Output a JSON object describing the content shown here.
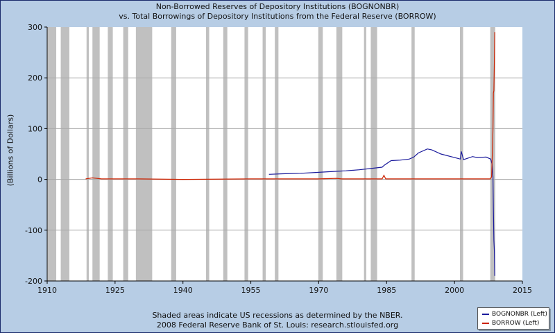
{
  "title": {
    "line1": "Non-Borrowed Reserves of Depository Institutions (BOGNONBR)",
    "line2": "vs.  Total Borrowings of Depository Institutions from the Federal Reserve (BORROW)"
  },
  "footer": {
    "line1": "Shaded areas indicate US recessions as determined by the NBER.",
    "line2": "2008 Federal Reserve Bank of St. Louis: research.stlouisfed.org"
  },
  "legend": [
    {
      "label": "BOGNONBR (Left)",
      "color": "#1a1a9c"
    },
    {
      "label": "BORROW (Left)",
      "color": "#cc2200"
    }
  ],
  "colors": {
    "background": "#b7cde5",
    "plot": "#ffffff",
    "recession": "#c0c0c0",
    "grid": "#aaaaaa"
  },
  "chart_data": {
    "type": "line",
    "title": "Non-Borrowed Reserves of Depository Institutions (BOGNONBR) vs. Total Borrowings of Depository Institutions from the Federal Reserve (BORROW)",
    "xlabel": "",
    "ylabel": "(Billions of Dollars)",
    "xlim": [
      1910,
      2015
    ],
    "ylim": [
      -200,
      300
    ],
    "x_ticks": [
      "1910",
      "1925",
      "1940",
      "1955",
      "1970",
      "1985",
      "2000",
      "2015"
    ],
    "y_ticks": [
      "-200",
      "-100",
      "0",
      "100",
      "200",
      "300"
    ],
    "grid": true,
    "legend_position": "bottom-right",
    "recessions": [
      [
        1910.1,
        1912.0
      ],
      [
        1913.0,
        1914.9
      ],
      [
        1918.7,
        1919.2
      ],
      [
        1920.0,
        1921.6
      ],
      [
        1923.4,
        1924.5
      ],
      [
        1926.8,
        1927.9
      ],
      [
        1929.6,
        1933.2
      ],
      [
        1937.4,
        1938.5
      ],
      [
        1945.1,
        1945.8
      ],
      [
        1948.9,
        1949.8
      ],
      [
        1953.6,
        1954.4
      ],
      [
        1957.6,
        1958.3
      ],
      [
        1960.3,
        1961.1
      ],
      [
        1969.9,
        1970.9
      ],
      [
        1973.9,
        1975.2
      ],
      [
        1980.0,
        1980.5
      ],
      [
        1981.5,
        1982.9
      ],
      [
        1990.5,
        1991.2
      ],
      [
        2001.2,
        2001.9
      ],
      [
        2007.9,
        2009.0
      ]
    ],
    "series": [
      {
        "name": "BOGNONBR (Left)",
        "color": "#1a1a9c",
        "x": [
          1959.0,
          1962,
          1966,
          1970,
          1974,
          1976,
          1979,
          1982,
          1984.0,
          1984.5,
          1986,
          1988,
          1990,
          1991,
          1992,
          1994.0,
          1995,
          1997,
          2000,
          2001.3,
          2001.5,
          2002,
          2004,
          2005,
          2007,
          2008.0,
          2008.3,
          2008.5,
          2008.6,
          2008.7,
          2008.8,
          2008.9
        ],
        "y": [
          10,
          11,
          12,
          14,
          16,
          17,
          19,
          22,
          24,
          28,
          37,
          38,
          40,
          44,
          52,
          60,
          58,
          50,
          43,
          40,
          55,
          39,
          45,
          43,
          44,
          40,
          30,
          5,
          -60,
          -120,
          -140,
          -190
        ]
      },
      {
        "name": "BORROW (Left)",
        "color": "#cc2200",
        "x": [
          1918.5,
          1920,
          1921,
          1922,
          1930,
          1940,
          1955,
          1970,
          1974,
          1975,
          1984.0,
          1984.4,
          1984.8,
          1990,
          2001.3,
          2007.9,
          2008.2,
          2008.4,
          2008.5,
          2008.6,
          2008.7,
          2008.8,
          2008.9
        ],
        "y": [
          1,
          3,
          2,
          1,
          1,
          0,
          1,
          1,
          2,
          1,
          1,
          8,
          1,
          1,
          1,
          1,
          5,
          60,
          100,
          170,
          175,
          230,
          290
        ]
      }
    ]
  }
}
